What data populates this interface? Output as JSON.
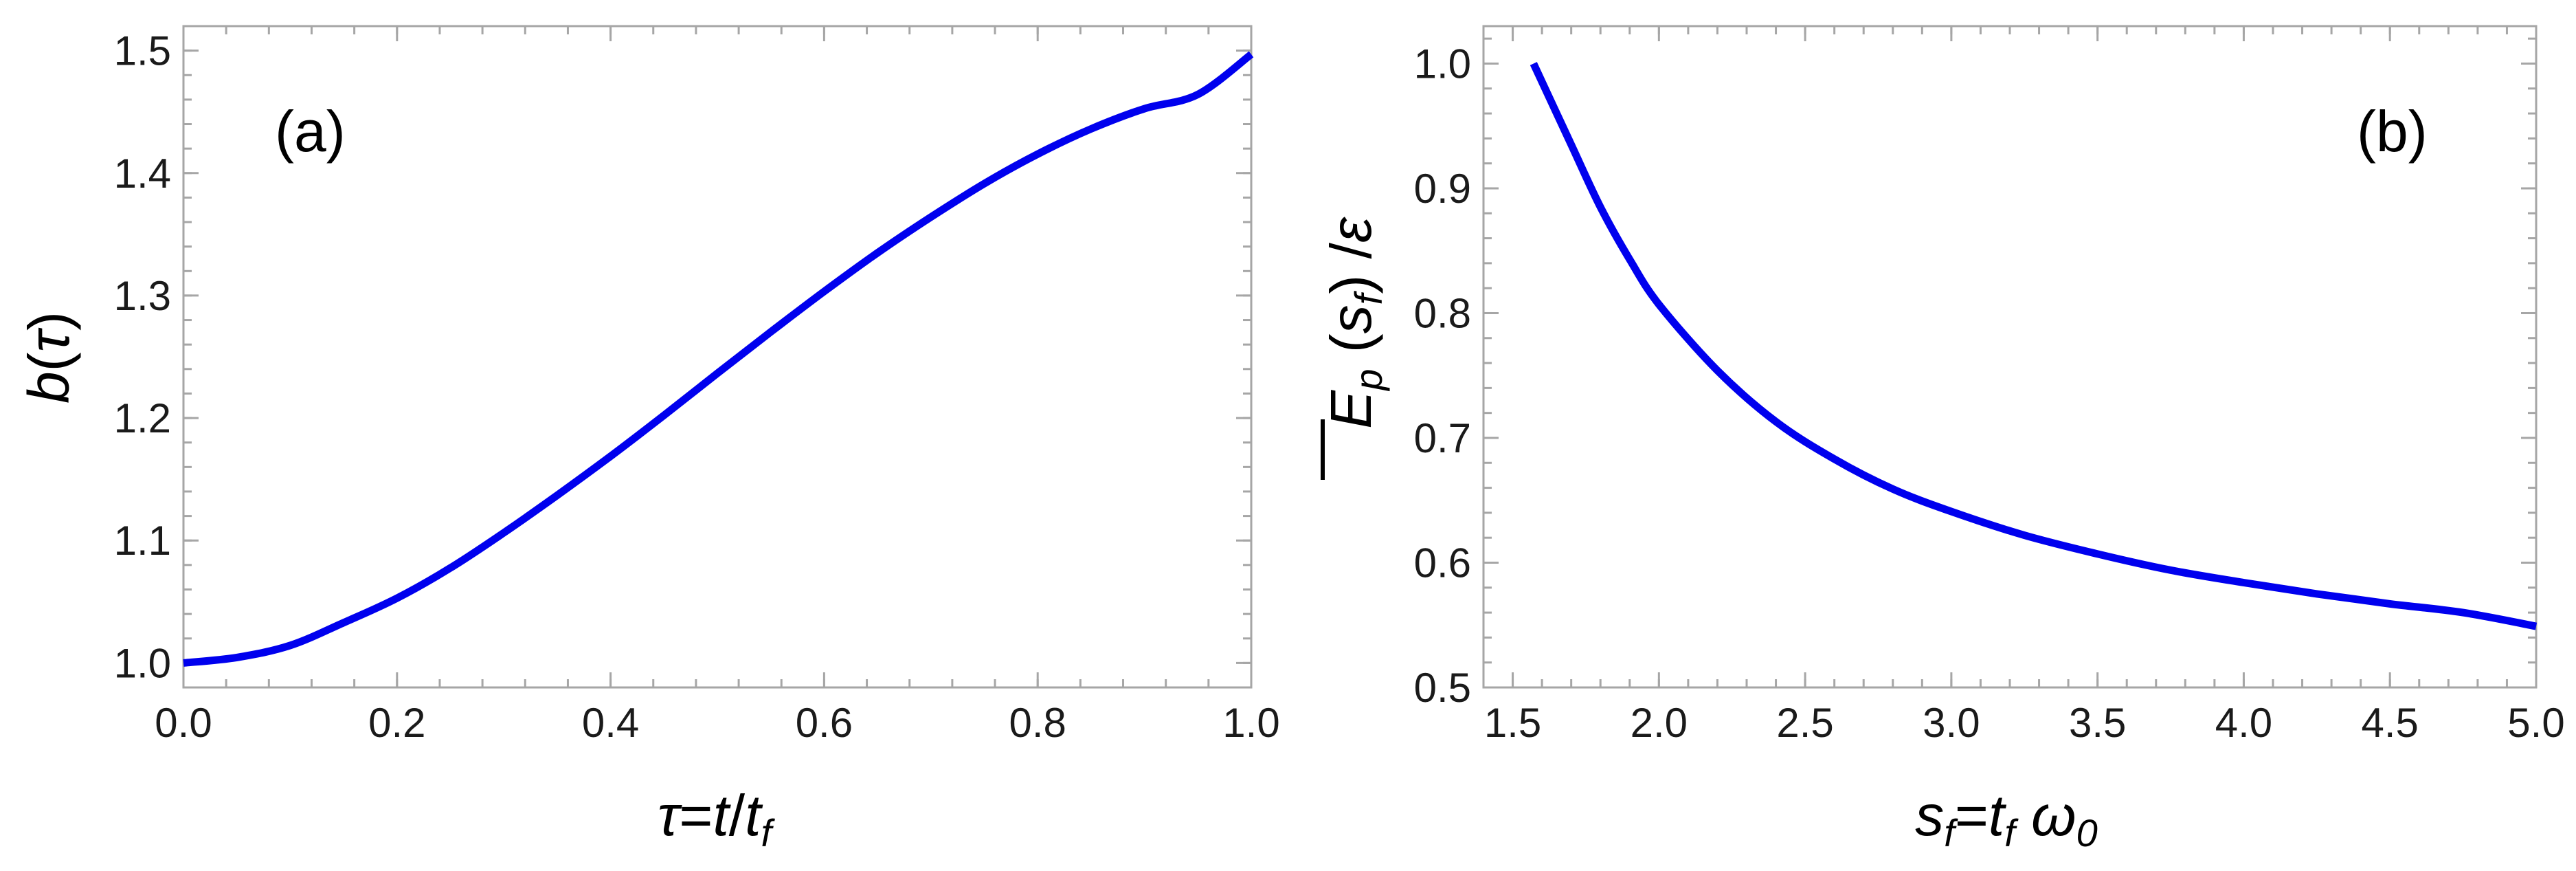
{
  "colors": {
    "series": "#0000ee",
    "frame": "#a6a6a6",
    "text": "#1a1a1a"
  },
  "chart_data": [
    {
      "type": "line",
      "panel_label": "(a)",
      "xlabel": "τ=t/t_f",
      "ylabel": "b(τ)",
      "xlim": [
        0,
        1
      ],
      "ylim": [
        0.98,
        1.52
      ],
      "xticks": [
        "0.0",
        "0.2",
        "0.4",
        "0.6",
        "0.8",
        "1.0"
      ],
      "yticks": [
        "1.0",
        "1.1",
        "1.2",
        "1.3",
        "1.4",
        "1.5"
      ],
      "grid": false,
      "series": [
        {
          "x": [
            0.0,
            0.05,
            0.1,
            0.15,
            0.2,
            0.25,
            0.3,
            0.35,
            0.4,
            0.45,
            0.5,
            0.55,
            0.6,
            0.65,
            0.7,
            0.75,
            0.8,
            0.85,
            0.9,
            0.95,
            1.0
          ],
          "y": [
            1.0,
            1.0045,
            1.0143,
            1.0329,
            1.0529,
            1.0776,
            1.1063,
            1.1369,
            1.1688,
            1.2022,
            1.2365,
            1.2703,
            1.3033,
            1.3349,
            1.3641,
            1.3914,
            1.4155,
            1.4361,
            1.4526,
            1.4642,
            1.497
          ]
        }
      ]
    },
    {
      "type": "line",
      "panel_label": "(b)",
      "xlabel": "s_f=t_f ω_0",
      "ylabel": "E_p (s_f) /ε",
      "xlim": [
        1.4,
        5.0
      ],
      "ylim": [
        0.5,
        1.03
      ],
      "xticks": [
        "1.5",
        "2.0",
        "2.5",
        "3.0",
        "3.5",
        "4.0",
        "4.5",
        "5.0"
      ],
      "yticks": [
        "0.5",
        "0.6",
        "0.7",
        "0.8",
        "0.9",
        "1.0"
      ],
      "grid": false,
      "series": [
        {
          "x": [
            1.571,
            1.7,
            1.8,
            1.9,
            2.0,
            2.2,
            2.4,
            2.6,
            2.8,
            3.0,
            3.25,
            3.5,
            3.75,
            4.0,
            4.25,
            4.5,
            4.75,
            5.0
          ],
          "y": [
            1.0,
            0.935,
            0.885,
            0.843,
            0.807,
            0.754,
            0.713,
            0.683,
            0.659,
            0.641,
            0.622,
            0.607,
            0.594,
            0.584,
            0.575,
            0.567,
            0.56,
            0.549
          ]
        }
      ]
    }
  ]
}
